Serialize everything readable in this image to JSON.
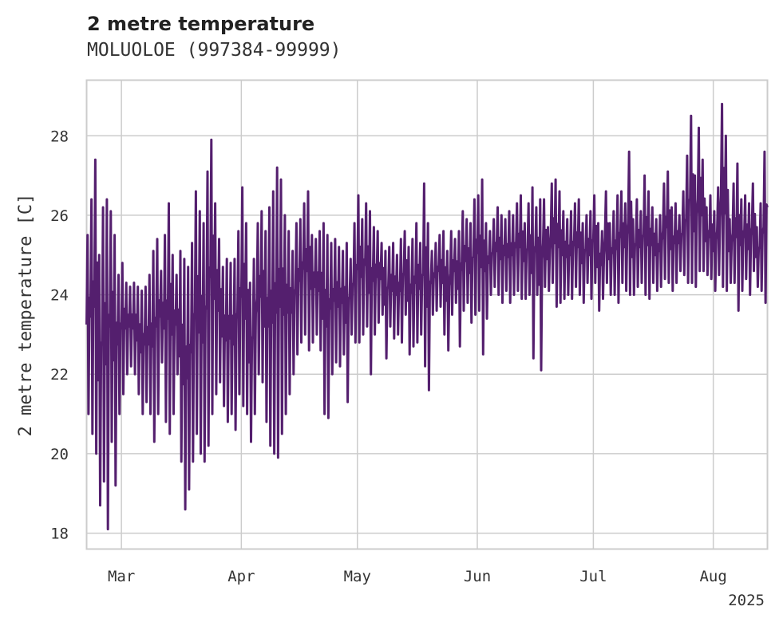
{
  "chart_data": {
    "type": "line",
    "title": "2 metre temperature",
    "subtitle": "MOLUOLOE (997384-99999)",
    "xlabel": "",
    "ylabel": "2 metre temperature [C]",
    "x_range": [
      "2025-02-20",
      "2025-08-15"
    ],
    "ylim": [
      17.6,
      29.4
    ],
    "y_ticks": [
      18,
      20,
      22,
      24,
      26,
      28
    ],
    "x_ticks": [
      {
        "date": "2025-03-01",
        "label": "Mar"
      },
      {
        "date": "2025-04-01",
        "label": "Apr"
      },
      {
        "date": "2025-05-01",
        "label": "May"
      },
      {
        "date": "2025-06-01",
        "label": "Jun"
      },
      {
        "date": "2025-07-01",
        "label": "Jul"
      },
      {
        "date": "2025-08-01",
        "label": "Aug"
      }
    ],
    "x_offset_label": "2025",
    "grid": true,
    "line_color": "#541f6e",
    "series": [
      {
        "name": "",
        "x": [
          "2025-02-20",
          "2025-02-21",
          "2025-02-22",
          "2025-02-23",
          "2025-02-24",
          "2025-02-25",
          "2025-02-26",
          "2025-02-27",
          "2025-02-28",
          "2025-03-01",
          "2025-03-02",
          "2025-03-03",
          "2025-03-04",
          "2025-03-05",
          "2025-03-06",
          "2025-03-07",
          "2025-03-08",
          "2025-03-09",
          "2025-03-10",
          "2025-03-11",
          "2025-03-12",
          "2025-03-13",
          "2025-03-14",
          "2025-03-15",
          "2025-03-16",
          "2025-03-17",
          "2025-03-18",
          "2025-03-19",
          "2025-03-20",
          "2025-03-21",
          "2025-03-22",
          "2025-03-23",
          "2025-03-24",
          "2025-03-25",
          "2025-03-26",
          "2025-03-27",
          "2025-03-28",
          "2025-03-29",
          "2025-03-30",
          "2025-03-31",
          "2025-04-01",
          "2025-04-02",
          "2025-04-03",
          "2025-04-04",
          "2025-04-05",
          "2025-04-06",
          "2025-04-07",
          "2025-04-08",
          "2025-04-09",
          "2025-04-10",
          "2025-04-11",
          "2025-04-12",
          "2025-04-13",
          "2025-04-14",
          "2025-04-15",
          "2025-04-16",
          "2025-04-17",
          "2025-04-18",
          "2025-04-19",
          "2025-04-20",
          "2025-04-21",
          "2025-04-22",
          "2025-04-23",
          "2025-04-24",
          "2025-04-25",
          "2025-04-26",
          "2025-04-27",
          "2025-04-28",
          "2025-04-29",
          "2025-04-30",
          "2025-05-01",
          "2025-05-02",
          "2025-05-03",
          "2025-05-04",
          "2025-05-05",
          "2025-05-06",
          "2025-05-07",
          "2025-05-08",
          "2025-05-09",
          "2025-05-10",
          "2025-05-11",
          "2025-05-12",
          "2025-05-13",
          "2025-05-14",
          "2025-05-15",
          "2025-05-16",
          "2025-05-17",
          "2025-05-18",
          "2025-05-19",
          "2025-05-20",
          "2025-05-21",
          "2025-05-22",
          "2025-05-23",
          "2025-05-24",
          "2025-05-25",
          "2025-05-26",
          "2025-05-27",
          "2025-05-28",
          "2025-05-29",
          "2025-05-30",
          "2025-05-31",
          "2025-06-01",
          "2025-06-02",
          "2025-06-03",
          "2025-06-04",
          "2025-06-05",
          "2025-06-06",
          "2025-06-07",
          "2025-06-08",
          "2025-06-09",
          "2025-06-10",
          "2025-06-11",
          "2025-06-12",
          "2025-06-13",
          "2025-06-14",
          "2025-06-15",
          "2025-06-16",
          "2025-06-17",
          "2025-06-18",
          "2025-06-19",
          "2025-06-20",
          "2025-06-21",
          "2025-06-22",
          "2025-06-23",
          "2025-06-24",
          "2025-06-25",
          "2025-06-26",
          "2025-06-27",
          "2025-06-28",
          "2025-06-29",
          "2025-06-30",
          "2025-07-01",
          "2025-07-02",
          "2025-07-03",
          "2025-07-04",
          "2025-07-05",
          "2025-07-06",
          "2025-07-07",
          "2025-07-08",
          "2025-07-09",
          "2025-07-10",
          "2025-07-11",
          "2025-07-12",
          "2025-07-13",
          "2025-07-14",
          "2025-07-15",
          "2025-07-16",
          "2025-07-17",
          "2025-07-18",
          "2025-07-19",
          "2025-07-20",
          "2025-07-21",
          "2025-07-22",
          "2025-07-23",
          "2025-07-24",
          "2025-07-25",
          "2025-07-26",
          "2025-07-27",
          "2025-07-28",
          "2025-07-29",
          "2025-07-30",
          "2025-07-31",
          "2025-08-01",
          "2025-08-02",
          "2025-08-03",
          "2025-08-04",
          "2025-08-05",
          "2025-08-06",
          "2025-08-07",
          "2025-08-08",
          "2025-08-09",
          "2025-08-10",
          "2025-08-11",
          "2025-08-12",
          "2025-08-13",
          "2025-08-14",
          "2025-08-15"
        ],
        "y_min": [
          21.0,
          20.5,
          20.0,
          18.7,
          19.3,
          18.1,
          20.3,
          19.2,
          21.0,
          21.5,
          22.0,
          22.2,
          22.0,
          21.5,
          21.0,
          21.3,
          21.0,
          20.3,
          21.0,
          22.3,
          20.8,
          20.5,
          21.0,
          22.0,
          19.8,
          18.6,
          19.1,
          19.8,
          20.5,
          20.0,
          19.8,
          20.2,
          21.0,
          21.5,
          21.8,
          21.2,
          20.8,
          21.0,
          20.6,
          21.5,
          21.2,
          21.0,
          20.3,
          21.0,
          22.0,
          21.8,
          20.8,
          20.2,
          20.0,
          19.9,
          20.5,
          21.0,
          21.5,
          22.0,
          22.5,
          22.8,
          23.0,
          22.6,
          22.8,
          23.0,
          22.6,
          21.0,
          20.9,
          22.0,
          22.3,
          22.2,
          22.5,
          21.3,
          23.0,
          22.8,
          22.8,
          23.0,
          23.2,
          22.0,
          23.0,
          23.3,
          23.5,
          22.4,
          23.2,
          22.9,
          23.0,
          22.8,
          23.5,
          22.5,
          22.7,
          22.8,
          23.0,
          22.2,
          21.6,
          23.5,
          23.6,
          23.7,
          23.0,
          22.6,
          23.5,
          23.8,
          22.7,
          23.6,
          23.8,
          23.3,
          23.5,
          23.6,
          22.5,
          23.4,
          24.0,
          24.2,
          24.0,
          23.8,
          24.1,
          23.8,
          24.0,
          24.1,
          23.9,
          23.9,
          24.0,
          22.4,
          24.0,
          22.1,
          24.2,
          24.1,
          24.3,
          23.7,
          23.8,
          23.9,
          24.0,
          23.9,
          24.2,
          24.0,
          23.8,
          24.3,
          23.9,
          24.3,
          23.6,
          23.9,
          24.3,
          24.0,
          24.0,
          23.8,
          24.3,
          24.1,
          24.0,
          24.0,
          24.2,
          24.3,
          24.0,
          23.9,
          24.3,
          24.1,
          24.2,
          24.4,
          24.3,
          24.1,
          24.3,
          24.6,
          24.5,
          24.3,
          24.3,
          24.2,
          24.6,
          24.6,
          24.5,
          24.4,
          24.1,
          24.5,
          24.2,
          24.1,
          24.3,
          24.3,
          23.6,
          24.1,
          24.4,
          24.0,
          24.6,
          24.2,
          24.1,
          23.8,
          24.0,
          23.9
        ],
        "y_max": [
          25.5,
          26.4,
          27.4,
          25.0,
          26.2,
          26.4,
          26.1,
          25.5,
          24.5,
          24.8,
          24.3,
          24.2,
          24.3,
          24.2,
          24.1,
          24.2,
          24.5,
          25.1,
          25.4,
          24.6,
          25.5,
          26.3,
          25.0,
          24.5,
          25.1,
          24.9,
          24.7,
          25.3,
          26.6,
          26.1,
          25.8,
          27.1,
          27.9,
          26.3,
          25.4,
          24.7,
          24.9,
          24.8,
          24.9,
          25.6,
          26.7,
          25.8,
          24.3,
          24.9,
          25.8,
          26.1,
          25.6,
          26.2,
          26.6,
          27.2,
          26.9,
          26.0,
          25.6,
          25.1,
          25.8,
          25.9,
          26.3,
          26.6,
          25.5,
          25.4,
          25.6,
          25.8,
          25.5,
          25.3,
          25.4,
          25.2,
          25.1,
          25.3,
          24.9,
          25.8,
          26.5,
          25.9,
          26.3,
          26.1,
          25.7,
          25.6,
          25.3,
          25.1,
          25.2,
          25.3,
          25.0,
          25.4,
          25.6,
          25.2,
          25.4,
          25.8,
          25.3,
          26.8,
          25.8,
          25.1,
          25.3,
          25.5,
          25.6,
          25.1,
          25.6,
          25.4,
          25.6,
          26.1,
          25.9,
          25.8,
          26.4,
          26.5,
          26.9,
          25.8,
          25.6,
          25.9,
          26.2,
          26.0,
          25.9,
          26.1,
          26.0,
          26.3,
          26.5,
          25.8,
          26.3,
          26.7,
          26.2,
          26.4,
          26.4,
          25.7,
          26.8,
          26.9,
          26.6,
          26.1,
          25.9,
          26.1,
          26.3,
          26.4,
          25.8,
          26.0,
          26.1,
          26.5,
          25.8,
          25.6,
          26.6,
          25.8,
          26.1,
          26.5,
          26.6,
          26.3,
          27.6,
          25.9,
          26.4,
          26.1,
          27.0,
          26.6,
          26.2,
          25.9,
          26.0,
          26.8,
          27.1,
          26.2,
          26.3,
          26.0,
          26.6,
          27.5,
          28.5,
          27.0,
          28.2,
          27.4,
          26.2,
          26.5,
          26.1,
          26.7,
          28.8,
          28.0,
          25.9,
          26.8,
          27.3,
          26.4,
          26.5,
          26.3,
          26.8,
          25.7,
          26.3,
          27.6,
          28.4,
          26.2,
          26.5,
          26.0
        ]
      }
    ]
  }
}
